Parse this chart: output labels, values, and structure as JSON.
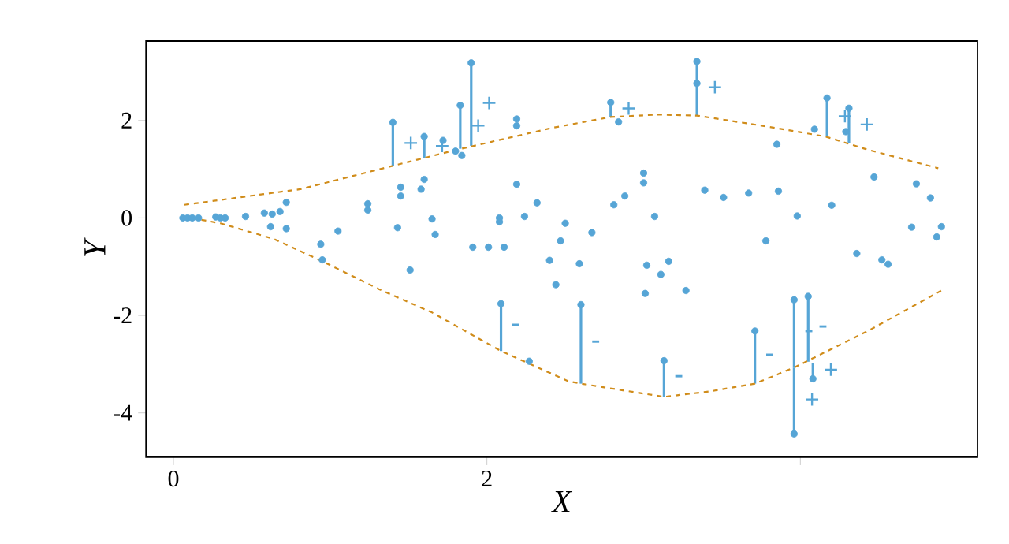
{
  "chart_data": {
    "type": "scatter",
    "xlabel": "X",
    "ylabel": "Y",
    "xlim": [
      -0.175,
      5.13
    ],
    "ylim": [
      -4.91,
      3.63
    ],
    "xticks": [
      0,
      2,
      {
        "value": 4,
        "label": null
      }
    ],
    "yticks": [
      -4,
      -2,
      0,
      2
    ],
    "series": [
      {
        "color": "#56a5d6",
        "marker": "circle",
        "x": [
          0.06,
          0.09,
          0.12,
          0.16,
          0.27,
          0.3,
          0.33,
          0.46,
          0.58,
          0.63,
          0.68,
          0.72,
          0.62,
          0.72,
          1.05,
          0.94,
          0.95,
          1.24,
          1.24,
          1.43,
          1.45,
          1.45,
          1.58,
          1.6,
          1.65,
          1.67,
          1.91,
          2.01,
          2.11,
          2.08,
          2.08,
          2.19,
          2.24,
          2.32,
          2.4,
          2.47,
          2.5,
          1.51,
          2.44,
          2.27,
          1.72,
          1.8,
          1.84,
          2.19,
          2.19,
          2.84,
          3.34,
          4.09,
          4.29,
          3.85,
          4.47,
          4.74,
          4.83,
          4.71,
          4.9,
          4.87,
          4.36,
          4.52,
          4.56,
          3.0,
          3.0,
          2.81,
          2.88,
          3.07,
          3.39,
          3.51,
          3.67,
          3.86,
          3.98,
          4.2,
          3.78,
          2.67,
          2.59,
          3.02,
          3.16,
          3.11,
          3.01,
          3.27,
          1.4,
          1.6,
          1.83,
          1.9,
          2.79,
          3.34,
          4.17,
          4.31,
          2.09,
          2.6,
          3.13,
          3.71,
          3.96,
          3.96,
          4.05,
          4.08
        ],
        "values": [
          0,
          0,
          0,
          0,
          0.02,
          0,
          0,
          0.03,
          0.1,
          0.08,
          0.13,
          0.32,
          -0.18,
          -0.22,
          -0.27,
          -0.54,
          -0.86,
          0.29,
          0.16,
          -0.2,
          0.63,
          0.45,
          0.59,
          0.79,
          -0.02,
          -0.34,
          -0.6,
          -0.6,
          -0.6,
          0,
          -0.08,
          0.69,
          0.03,
          0.31,
          -0.87,
          -0.47,
          -0.11,
          -1.07,
          -1.37,
          -2.94,
          1.59,
          1.37,
          1.28,
          2.03,
          1.89,
          1.97,
          2.76,
          1.82,
          1.77,
          1.51,
          0.84,
          0.7,
          0.41,
          -0.19,
          -0.18,
          -0.39,
          -0.73,
          -0.86,
          -0.95,
          0.92,
          0.72,
          0.27,
          0.45,
          0.03,
          0.57,
          0.42,
          0.51,
          0.55,
          0.04,
          0.26,
          -0.47,
          -0.3,
          -0.94,
          -0.97,
          -0.89,
          -1.16,
          -1.55,
          -1.49,
          1.96,
          1.67,
          2.31,
          3.18,
          2.37,
          3.21,
          2.46,
          2.25,
          -1.76,
          -1.78,
          -2.93,
          -2.32,
          -1.68,
          -4.43,
          -1.61,
          -3.3
        ],
        "errors": [
          null,
          null,
          null,
          null,
          null,
          null,
          null,
          null,
          null,
          null,
          null,
          null,
          null,
          null,
          null,
          null,
          null,
          null,
          null,
          null,
          null,
          null,
          null,
          null,
          null,
          null,
          null,
          null,
          null,
          null,
          null,
          null,
          null,
          null,
          null,
          null,
          null,
          null,
          null,
          null,
          null,
          null,
          null,
          null,
          null,
          null,
          null,
          null,
          null,
          null,
          null,
          null,
          null,
          null,
          null,
          null,
          null,
          null,
          null,
          null,
          null,
          null,
          null,
          null,
          null,
          null,
          null,
          null,
          null,
          null,
          null,
          null,
          null,
          null,
          null,
          null,
          null,
          null,
          [
            1.06,
            1.96
          ],
          [
            1.23,
            1.67
          ],
          [
            1.42,
            2.31
          ],
          [
            1.48,
            3.18
          ],
          [
            2.07,
            2.37
          ],
          [
            2.1,
            3.21
          ],
          [
            1.66,
            2.46
          ],
          [
            1.53,
            2.25
          ],
          [
            -2.73,
            -1.76
          ],
          [
            -3.4,
            -1.78
          ],
          [
            -3.67,
            -2.93
          ],
          [
            -3.4,
            -2.32
          ],
          [
            -3.07,
            -1.68
          ],
          [
            -4.43,
            -3.07
          ],
          [
            -2.95,
            -1.61
          ],
          [
            -3.3,
            -2.98
          ]
        ]
      },
      {
        "type": "line",
        "color": "#d08c1a",
        "marker": "none",
        "line_style": "dashed",
        "x": [
          0.07,
          0.81,
          1.34,
          1.81,
          2.42,
          2.79,
          3.09,
          3.34,
          3.76,
          4.16,
          4.43,
          4.88
        ],
        "values": [
          0.27,
          0.59,
          1.02,
          1.4,
          1.85,
          2.07,
          2.12,
          2.1,
          1.89,
          1.67,
          1.4,
          1.02
        ]
      },
      {
        "type": "line",
        "color": "#d08c1a",
        "marker": "none",
        "line_style": "dashed",
        "x": [
          0.06,
          0.3,
          0.64,
          0.97,
          1.31,
          1.65,
          2.09,
          2.52,
          2.6,
          3.13,
          3.42,
          3.71,
          3.96,
          4.43,
          4.9
        ],
        "values": [
          0.03,
          -0.11,
          -0.43,
          -0.92,
          -1.46,
          -1.94,
          -2.73,
          -3.35,
          -3.4,
          -3.67,
          -3.56,
          -3.4,
          -3.07,
          -2.32,
          -1.49
        ]
      }
    ],
    "annotations": [
      {
        "text": "+",
        "x": 1.4,
        "y": 1.96
      },
      {
        "text": "+",
        "x": 1.6,
        "y": 1.67
      },
      {
        "text": "+",
        "x": 1.83,
        "y": 2.31
      },
      {
        "text": "+",
        "x": 1.9,
        "y": 3.18
      },
      {
        "text": "+",
        "x": 2.79,
        "y": 2.37
      },
      {
        "text": "+",
        "x": 3.34,
        "y": 3.21
      },
      {
        "text": "+",
        "x": 4.17,
        "y": 2.46
      },
      {
        "text": "+",
        "x": 4.31,
        "y": 2.25
      },
      {
        "text": "-",
        "x": 2.09,
        "y": -1.76
      },
      {
        "text": "-",
        "x": 2.6,
        "y": -1.78
      },
      {
        "text": "-",
        "x": 3.13,
        "y": -2.93
      },
      {
        "text": "-",
        "x": 3.71,
        "y": -2.32
      },
      {
        "text": "+",
        "x": 3.96,
        "y": -4.43
      },
      {
        "text": "-",
        "x": 3.96,
        "y": -1.68
      },
      {
        "text": "-",
        "x": 4.05,
        "y": -1.61
      },
      {
        "text": "+",
        "x": 4.08,
        "y": -3.3
      }
    ]
  }
}
